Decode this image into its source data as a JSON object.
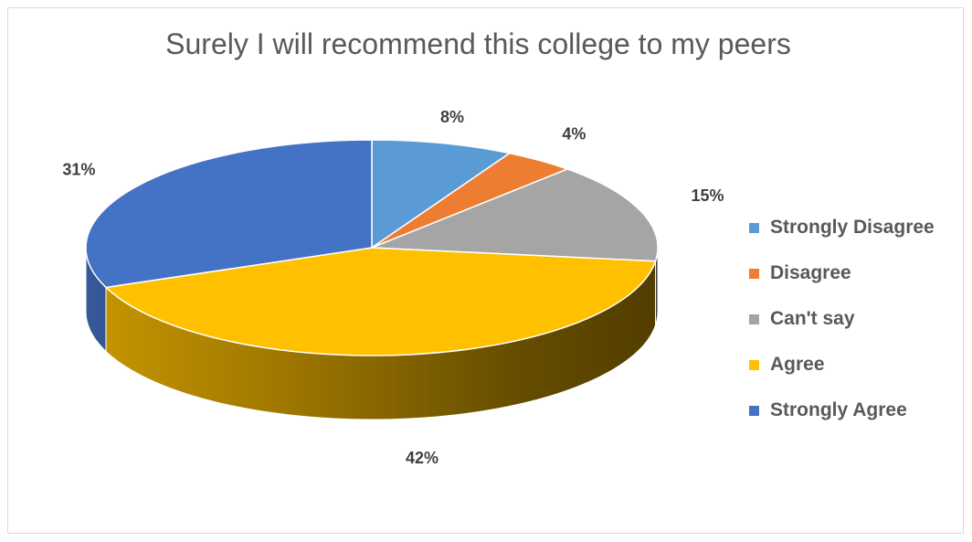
{
  "chart_data": {
    "type": "pie",
    "title": "Surely I will recommend this college to my peers",
    "slices": [
      {
        "name": "Strongly Disagree",
        "value": 8,
        "label": "8%",
        "color": "#5B9BD5"
      },
      {
        "name": "Disagree",
        "value": 4,
        "label": "4%",
        "color": "#ED7D31"
      },
      {
        "name": "Can't say",
        "value": 15,
        "label": "15%",
        "color": "#A5A5A5"
      },
      {
        "name": "Agree",
        "value": 42,
        "label": "42%",
        "color": "#FFC000"
      },
      {
        "name": "Strongly Agree",
        "value": 31,
        "label": "31%",
        "color": "#4472C4"
      }
    ],
    "style": "3d",
    "legend_position": "right"
  }
}
